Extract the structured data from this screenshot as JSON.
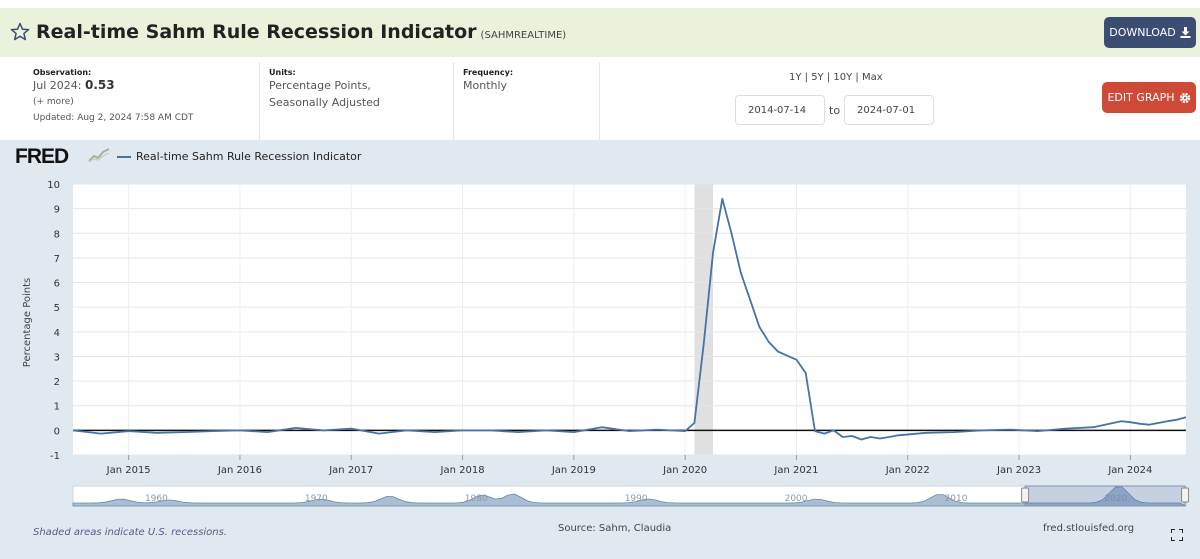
{
  "header": {
    "title": "Real-time Sahm Rule Recession Indicator",
    "series_id": "(SAHMREALTIME)",
    "download_label": "DOWNLOAD",
    "star_icon": "star-outline-icon"
  },
  "meta": {
    "observation_label": "Observation:",
    "observation_date": "Jul 2024:",
    "observation_value": "0.53",
    "more_label": "(+ more)",
    "updated": "Updated: Aug 2, 2024 7:58 AM CDT",
    "units_label": "Units:",
    "units_line1": "Percentage Points,",
    "units_line2": "Seasonally Adjusted",
    "frequency_label": "Frequency:",
    "frequency_value": "Monthly"
  },
  "range": {
    "links": "1Y | 5Y | 10Y | Max",
    "start": "2014-07-14",
    "to_label": "to",
    "end": "2024-07-01"
  },
  "edit_label": "EDIT GRAPH",
  "footer": {
    "note": "Shaded areas indicate U.S. recessions.",
    "source": "Source: Sahm, Claudia",
    "site": "fred.stlouisfed.org"
  },
  "colors": {
    "line": "#4572a7",
    "recession": "#e0e0e0",
    "accent_download": "#3c4d73",
    "accent_edit": "#cf4a36"
  },
  "chart_data": {
    "type": "line",
    "logo": "FRED",
    "ylabel": "Percentage Points",
    "ylim": [
      -1,
      10
    ],
    "yticks": [
      -1,
      0,
      1,
      2,
      3,
      4,
      5,
      6,
      7,
      8,
      9,
      10
    ],
    "xlim": [
      "2014-07",
      "2024-07"
    ],
    "xticks": [
      {
        "date": "2015-01",
        "label": "Jan 2015"
      },
      {
        "date": "2016-01",
        "label": "Jan 2016"
      },
      {
        "date": "2017-01",
        "label": "Jan 2017"
      },
      {
        "date": "2018-01",
        "label": "Jan 2018"
      },
      {
        "date": "2019-01",
        "label": "Jan 2019"
      },
      {
        "date": "2020-01",
        "label": "Jan 2020"
      },
      {
        "date": "2021-01",
        "label": "Jan 2021"
      },
      {
        "date": "2022-01",
        "label": "Jan 2022"
      },
      {
        "date": "2023-01",
        "label": "Jan 2023"
      },
      {
        "date": "2024-01",
        "label": "Jan 2024"
      }
    ],
    "recessions": [
      {
        "start": "2020-02",
        "end": "2020-04"
      }
    ],
    "series": [
      {
        "name": "Real-time Sahm Rule Recession Indicator",
        "x": [
          "2014-07",
          "2014-10",
          "2015-01",
          "2015-04",
          "2015-07",
          "2015-10",
          "2016-01",
          "2016-04",
          "2016-07",
          "2016-10",
          "2017-01",
          "2017-04",
          "2017-07",
          "2017-10",
          "2018-01",
          "2018-04",
          "2018-07",
          "2018-10",
          "2019-01",
          "2019-04",
          "2019-07",
          "2019-10",
          "2020-01",
          "2020-02",
          "2020-03",
          "2020-04",
          "2020-05",
          "2020-06",
          "2020-07",
          "2020-08",
          "2020-09",
          "2020-10",
          "2020-11",
          "2020-12",
          "2021-01",
          "2021-02",
          "2021-03",
          "2021-04",
          "2021-05",
          "2021-06",
          "2021-07",
          "2021-08",
          "2021-09",
          "2021-10",
          "2021-11",
          "2021-12",
          "2022-03",
          "2022-06",
          "2022-09",
          "2022-12",
          "2023-03",
          "2023-06",
          "2023-09",
          "2023-12",
          "2024-01",
          "2024-02",
          "2024-03",
          "2024-04",
          "2024-05",
          "2024-06",
          "2024-07"
        ],
        "values": [
          0.0,
          -0.13,
          -0.03,
          -0.1,
          -0.07,
          -0.03,
          0.0,
          -0.07,
          0.1,
          0.0,
          0.07,
          -0.13,
          0.0,
          -0.07,
          0.0,
          0.0,
          -0.07,
          0.0,
          -0.07,
          0.13,
          -0.03,
          0.03,
          -0.03,
          0.3,
          3.5,
          7.2,
          9.4,
          8.0,
          6.4,
          5.3,
          4.2,
          3.6,
          3.2,
          3.03,
          2.87,
          2.33,
          -0.03,
          -0.13,
          0.0,
          -0.27,
          -0.23,
          -0.37,
          -0.27,
          -0.33,
          -0.27,
          -0.2,
          -0.1,
          -0.07,
          0.0,
          0.03,
          -0.03,
          0.07,
          0.13,
          0.37,
          0.33,
          0.27,
          0.23,
          0.3,
          0.37,
          0.43,
          0.53
        ]
      }
    ],
    "navigator": {
      "tick_labels": [
        "1960",
        "1970",
        "1980",
        "1990",
        "2000",
        "2010",
        "2020"
      ]
    }
  }
}
